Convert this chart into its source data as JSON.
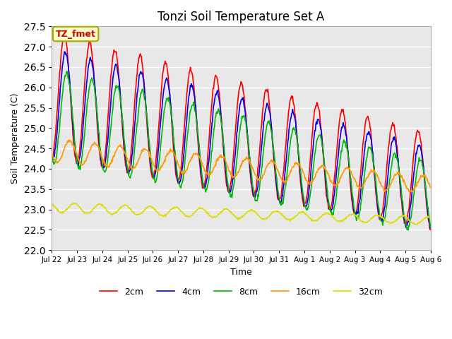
{
  "title": "Tonzi Soil Temperature Set A",
  "xlabel": "Time",
  "ylabel": "Soil Temperature (C)",
  "ylim": [
    22.0,
    27.5
  ],
  "annotation_text": "TZ_fmet",
  "annotation_bg": "#ffffcc",
  "annotation_border": "#aaa800",
  "bg_color": "#e8e8e8",
  "grid_color": "#ffffff",
  "colors": {
    "2cm": "#ff0000",
    "4cm": "#0000ee",
    "8cm": "#00bb00",
    "16cm": "#ff9900",
    "32cm": "#dddd00"
  },
  "line_width": 1.2,
  "tick_labels": [
    "Jul 22",
    "Jul 23",
    "Jul 24",
    "Jul 25",
    "Jul 26",
    "Jul 27",
    "Jul 28",
    "Jul 29",
    "Jul 30",
    "Jul 31",
    "Aug 1",
    "Aug 2",
    "Aug 3",
    "Aug 4",
    "Aug 5",
    "Aug 6"
  ],
  "tick_positions": [
    0,
    1,
    2,
    3,
    4,
    5,
    6,
    7,
    8,
    9,
    10,
    11,
    12,
    13,
    14,
    15
  ]
}
